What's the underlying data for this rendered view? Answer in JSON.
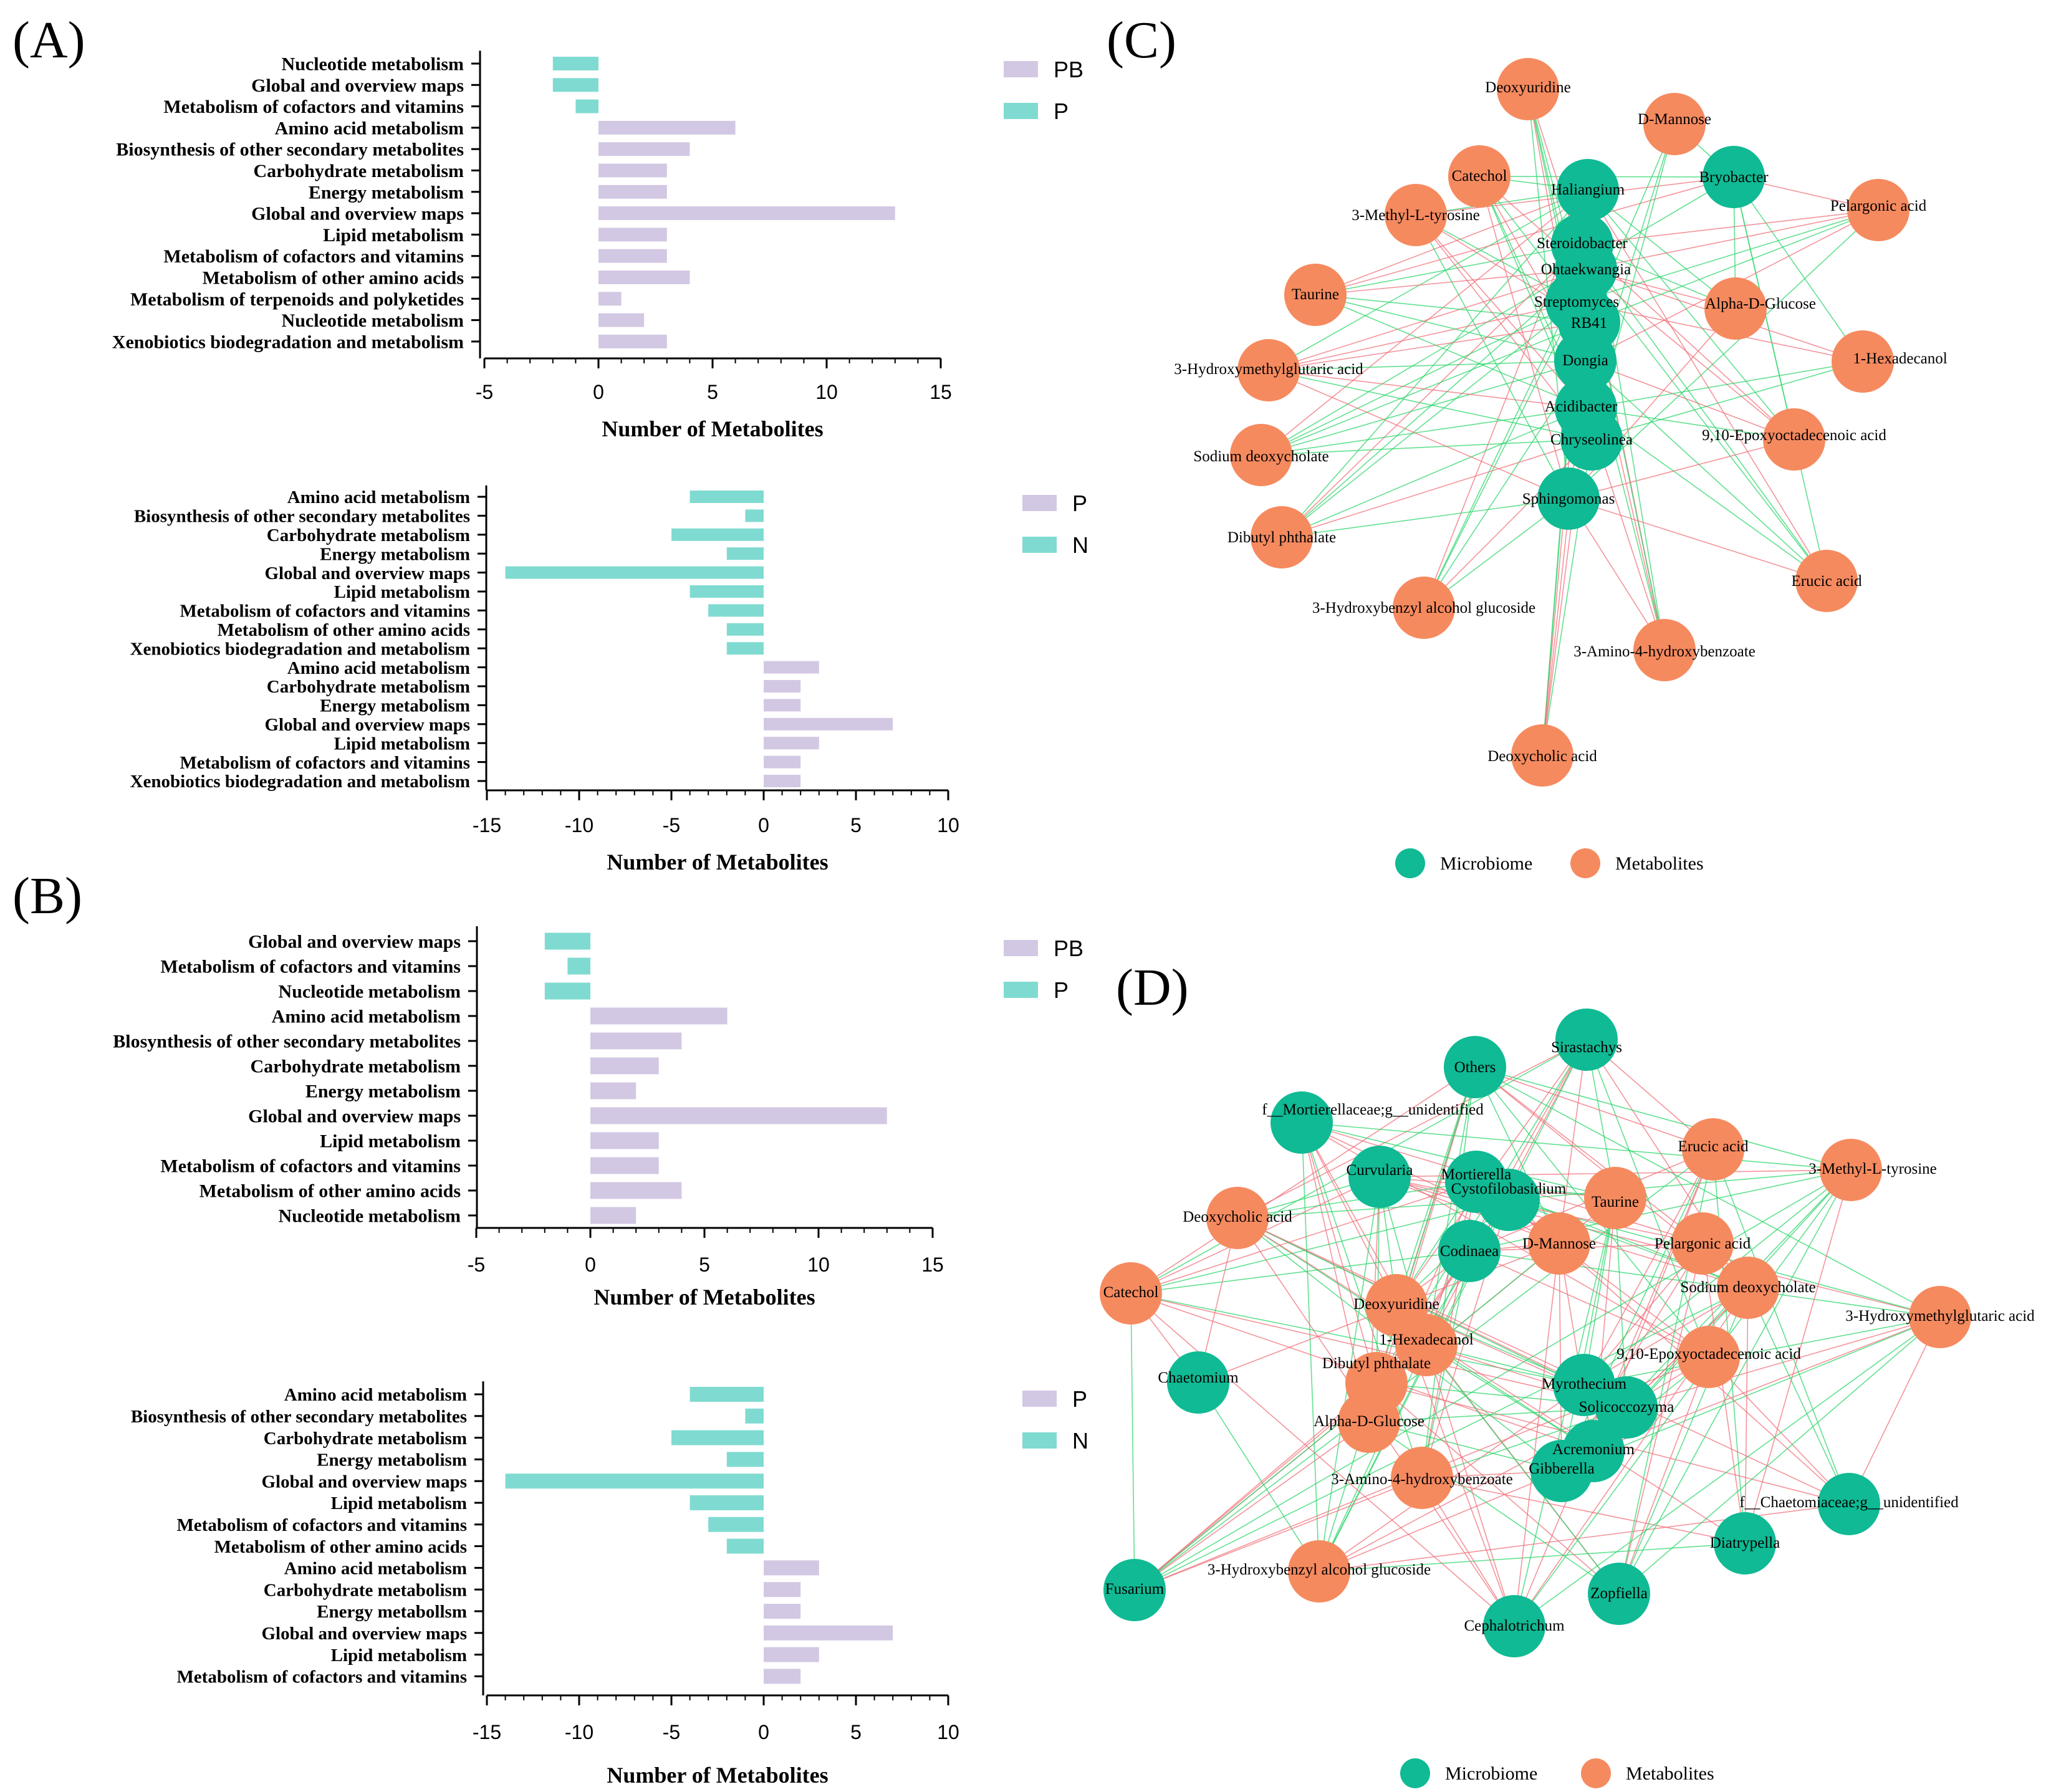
{
  "panel_labels": [
    "(A)",
    "(B)",
    "(C)",
    "(D)"
  ],
  "colors": {
    "pb": "#d3c8e3",
    "p_top": "#7fdbd1",
    "n": "#7fdbd1",
    "microbe": "#0fba94",
    "metab": "#f68a5f",
    "edge_pos": "#2ed66b",
    "edge_neg": "#f0707a",
    "red_label": "#e8242c"
  },
  "chart_data": [
    {
      "type": "bar",
      "orientation": "horizontal",
      "panel": "A-top",
      "categories": [
        "Nucleotide metabolism",
        "Global and overview maps",
        "Metabolism of cofactors and vitamins",
        "Amino acid metabolism",
        "Biosynthesis of other secondary metabolites",
        "Carbohydrate metabolism",
        "Energy metabolism",
        "Global and overview maps",
        "Lipid metabolism",
        "Metabolism of cofactors and vitamins",
        "Metabolism of other amino acids",
        "Metabolism of terpenoids and polyketides",
        "Nucleotide metabolism",
        "Xenobiotics biodegradation and metabolism"
      ],
      "values": [
        -2,
        -2,
        -1,
        6,
        4,
        3,
        3,
        13,
        3,
        3,
        4,
        1,
        2,
        3
      ],
      "groups": [
        "P",
        "P",
        "P",
        "PB",
        "PB",
        "PB",
        "PB",
        "PB",
        "PB",
        "PB",
        "PB",
        "PB",
        "PB",
        "PB"
      ],
      "xlim": [
        -5,
        15
      ],
      "xticks": [
        "-5",
        "0",
        "5",
        "10",
        "15"
      ],
      "xlabel": "Number of Metabolites",
      "legend": [
        "PB",
        "P"
      ]
    },
    {
      "type": "bar",
      "orientation": "horizontal",
      "panel": "A-bottom",
      "categories": [
        "Amino acid metabolism",
        "Biosynthesis of other secondary metabolites",
        "Carbohydrate metabolism",
        "Energy metabolism",
        "Global and overview maps",
        "Lipid metabolism",
        "Metabolism of cofactors and vitamins",
        "Metabolism of other amino acids",
        "Xenobiotics biodegradation and metabolism",
        "Amino acid metabolism",
        "Carbohydrate metabolism",
        "Energy metabolism",
        "Global and overview maps",
        "Lipid metabolism",
        "Metabolism of cofactors and vitamins",
        "Xenobiotics biodegradation and metabolism"
      ],
      "values": [
        -4,
        -1,
        -5,
        -2,
        -14,
        -4,
        -3,
        -2,
        -2,
        3,
        2,
        2,
        7,
        3,
        2,
        2
      ],
      "groups": [
        "N",
        "N",
        "N",
        "N",
        "N",
        "N",
        "N",
        "N",
        "N",
        "P",
        "P",
        "P",
        "P",
        "P",
        "P",
        "P"
      ],
      "xlim": [
        -15,
        10
      ],
      "xticks": [
        "-15",
        "-10",
        "-5",
        "0",
        "5",
        "10"
      ],
      "xlabel": "Number of Metabolites",
      "legend": [
        "P",
        "N"
      ]
    },
    {
      "type": "bar",
      "orientation": "horizontal",
      "panel": "B-top",
      "categories": [
        "Global and overview maps",
        "Metabolism of cofactors and vitamins",
        "Nucleotide metabolism",
        "Amino acid metabolism",
        "Blosynthesis of other secondary metabolites",
        "Carbohydrate metabolism",
        "Energy metabolism",
        "Global and overview maps",
        "Lipid metabolism",
        "Metabolism of cofactors and vitamins",
        "Metabolism of other amino acids",
        "Nucleotide metabolism"
      ],
      "values": [
        -2,
        -1,
        -2,
        6,
        4,
        3,
        2,
        13,
        3,
        3,
        4,
        2
      ],
      "groups": [
        "P",
        "P",
        "P",
        "PB",
        "PB",
        "PB",
        "PB",
        "PB",
        "PB",
        "PB",
        "PB",
        "PB"
      ],
      "xlim": [
        -5,
        15
      ],
      "xticks": [
        "-5",
        "0",
        "5",
        "10",
        "15"
      ],
      "xlabel": "Number of Metabolites",
      "legend": [
        "PB",
        "P"
      ]
    },
    {
      "type": "bar",
      "orientation": "horizontal",
      "panel": "B-bottom",
      "categories": [
        "Amino acid metabolism",
        "Biosynthesis of other secondary metabolites",
        "Carbohydrate metabolism",
        "Energy metabolism",
        "Global and overview maps",
        "Lipid metabolism",
        "Metabolism of cofactors and vitamins",
        "Metabolism of other amino acids",
        "Amino acid metabolism",
        "Carbohydrate metabolism",
        "Energy metabollsm",
        "Global and overview maps",
        "Lipid metabolism",
        "Metabolism of cofactors and vitamins"
      ],
      "values": [
        -4,
        -1,
        -5,
        -2,
        -14,
        -4,
        -3,
        -2,
        3,
        2,
        2,
        7,
        3,
        2
      ],
      "groups": [
        "N",
        "N",
        "N",
        "N",
        "N",
        "N",
        "N",
        "N",
        "P",
        "P",
        "P",
        "P",
        "P",
        "P"
      ],
      "xlim": [
        -15,
        10
      ],
      "xticks": [
        "-15",
        "-10",
        "-5",
        "0",
        "5",
        "10"
      ],
      "xlabel": "Number of Metabolites",
      "legend": [
        "P",
        "N"
      ]
    }
  ],
  "networks": [
    {
      "panel": "C",
      "legend": [
        "Microbiome",
        "Metabolites"
      ],
      "nodes": [
        {
          "label": "Deoxyuridine",
          "kind": "metabolite",
          "highlight": false
        },
        {
          "label": "D-Mannose",
          "kind": "metabolite",
          "highlight": false
        },
        {
          "label": "Catechol",
          "kind": "metabolite",
          "highlight": false
        },
        {
          "label": "Haliangium",
          "kind": "microbe",
          "highlight": false
        },
        {
          "label": "Bryobacter",
          "kind": "microbe",
          "highlight": false
        },
        {
          "label": "Pelargonic acid",
          "kind": "metabolite",
          "highlight": false
        },
        {
          "label": "3-Methyl-L-tyrosine",
          "kind": "metabolite",
          "highlight": false
        },
        {
          "label": "Steroidobacter",
          "kind": "microbe",
          "highlight": false
        },
        {
          "label": "Ohtaekwangia",
          "kind": "microbe",
          "highlight": false
        },
        {
          "label": "Taurine",
          "kind": "metabolite",
          "highlight": false
        },
        {
          "label": "Streptomyces",
          "kind": "microbe",
          "highlight": true
        },
        {
          "label": "Alpha-D-Glucose",
          "kind": "metabolite",
          "highlight": false
        },
        {
          "label": "RB41",
          "kind": "microbe",
          "highlight": false
        },
        {
          "label": "Dongia",
          "kind": "microbe",
          "highlight": false
        },
        {
          "label": "1-Hexadecanol",
          "kind": "metabolite",
          "highlight": false
        },
        {
          "label": "3-Hydroxymethylglutaric acid",
          "kind": "metabolite",
          "highlight": false
        },
        {
          "label": "Acidibacter",
          "kind": "microbe",
          "highlight": false
        },
        {
          "label": "Chryseolinea",
          "kind": "microbe",
          "highlight": false
        },
        {
          "label": "9,10-Epoxyoctadecenoic acid",
          "kind": "metabolite",
          "highlight": false
        },
        {
          "label": "Sodium deoxycholate",
          "kind": "metabolite",
          "highlight": false
        },
        {
          "label": "Sphingomonas",
          "kind": "microbe",
          "highlight": true
        },
        {
          "label": "Dibutyl phthalate",
          "kind": "metabolite",
          "highlight": false
        },
        {
          "label": "Erucic acid",
          "kind": "metabolite",
          "highlight": false
        },
        {
          "label": "3-Hydroxybenzyl alcohol glucoside",
          "kind": "metabolite",
          "highlight": false
        },
        {
          "label": "3-Amino-4-hydroxybenzoate",
          "kind": "metabolite",
          "highlight": false
        },
        {
          "label": "Deoxycholic acid",
          "kind": "metabolite",
          "highlight": false
        }
      ]
    },
    {
      "panel": "D",
      "legend": [
        "Microbiome",
        "Metabolites"
      ],
      "nodes": [
        {
          "label": "Sirastachys",
          "kind": "microbe",
          "highlight": false
        },
        {
          "label": "Others",
          "kind": "microbe",
          "highlight": false
        },
        {
          "label": "f__Mortierellaceae;g__unidentified",
          "kind": "microbe",
          "highlight": false
        },
        {
          "label": "Erucic acid",
          "kind": "metabolite",
          "highlight": false
        },
        {
          "label": "3-Methyl-L-tyrosine",
          "kind": "metabolite",
          "highlight": false
        },
        {
          "label": "Curvularia",
          "kind": "microbe",
          "highlight": true
        },
        {
          "label": "Mortierella",
          "kind": "microbe",
          "highlight": true
        },
        {
          "label": "Cystofilobasidium",
          "kind": "microbe",
          "highlight": false
        },
        {
          "label": "Taurine",
          "kind": "metabolite",
          "highlight": false
        },
        {
          "label": "Deoxycholic acid",
          "kind": "metabolite",
          "highlight": false
        },
        {
          "label": "Codinaea",
          "kind": "microbe",
          "highlight": false
        },
        {
          "label": "D-Mannose",
          "kind": "metabolite",
          "highlight": false
        },
        {
          "label": "Pelargonic acid",
          "kind": "metabolite",
          "highlight": false
        },
        {
          "label": "Catechol",
          "kind": "metabolite",
          "highlight": false
        },
        {
          "label": "Sodium deoxycholate",
          "kind": "metabolite",
          "highlight": false
        },
        {
          "label": "Deoxyuridine",
          "kind": "metabolite",
          "highlight": false
        },
        {
          "label": "3-Hydroxymethylglutaric acid",
          "kind": "metabolite",
          "highlight": false
        },
        {
          "label": "1-Hexadecanol",
          "kind": "metabolite",
          "highlight": false
        },
        {
          "label": "9,10-Epoxyoctadecenoic acid",
          "kind": "metabolite",
          "highlight": false
        },
        {
          "label": "Chaetomium",
          "kind": "microbe",
          "highlight": true
        },
        {
          "label": "Dibutyl phthalate",
          "kind": "metabolite",
          "highlight": false
        },
        {
          "label": "Myrothecium",
          "kind": "microbe",
          "highlight": false
        },
        {
          "label": "Solicoccozyma",
          "kind": "microbe",
          "highlight": false
        },
        {
          "label": "Alpha-D-Glucose",
          "kind": "metabolite",
          "highlight": false
        },
        {
          "label": "Acremonium",
          "kind": "microbe",
          "highlight": true
        },
        {
          "label": "3-Amino-4-hydroxybenzoate",
          "kind": "metabolite",
          "highlight": false
        },
        {
          "label": "Gibberella",
          "kind": "microbe",
          "highlight": false
        },
        {
          "label": "f__Chaetomiaceae;g__unidentified",
          "kind": "microbe",
          "highlight": false
        },
        {
          "label": "Diatrypella",
          "kind": "microbe",
          "highlight": false
        },
        {
          "label": "Fusarium",
          "kind": "microbe",
          "highlight": false
        },
        {
          "label": "3-Hydroxybenzyl alcohol glucoside",
          "kind": "metabolite",
          "highlight": false
        },
        {
          "label": "Zopfiella",
          "kind": "microbe",
          "highlight": false
        },
        {
          "label": "Cephalotrichum",
          "kind": "microbe",
          "highlight": false
        }
      ]
    }
  ]
}
